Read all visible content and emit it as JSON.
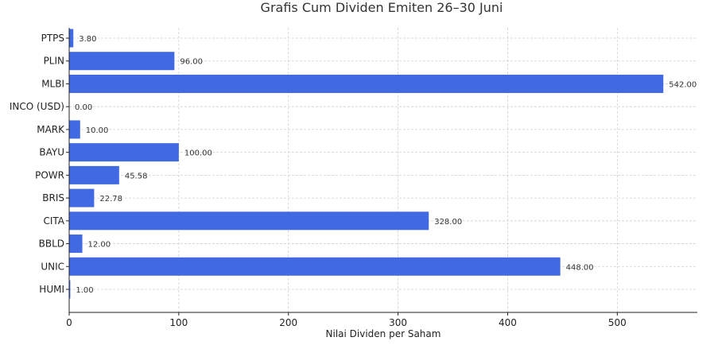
{
  "chart_data": {
    "type": "bar",
    "orientation": "horizontal",
    "title": "Grafis Cum Dividen Emiten 26–30 Juni",
    "xlabel": "Nilai Dividen per Saham",
    "ylabel": "",
    "categories": [
      "PTPS",
      "PLIN",
      "MLBI",
      "INCO (USD)",
      "MARK",
      "BAYU",
      "POWR",
      "BRIS",
      "CITA",
      "BBLD",
      "UNIC",
      "HUMI"
    ],
    "values": [
      3.8,
      96.0,
      542.0,
      0.0,
      10.0,
      100.0,
      45.58,
      22.78,
      328.0,
      12.0,
      448.0,
      1.0
    ],
    "data_labels": [
      "3.80",
      "96.00",
      "542.00",
      "0.00",
      "10.00",
      "100.00",
      "45.58",
      "22.78",
      "328.00",
      "12.00",
      "448.00",
      "1.00"
    ],
    "xlim": [
      0,
      573
    ],
    "xticks": [
      "0",
      "100",
      "200",
      "300",
      "400",
      "500"
    ],
    "grid": true,
    "bar_color": "#4169e1"
  }
}
